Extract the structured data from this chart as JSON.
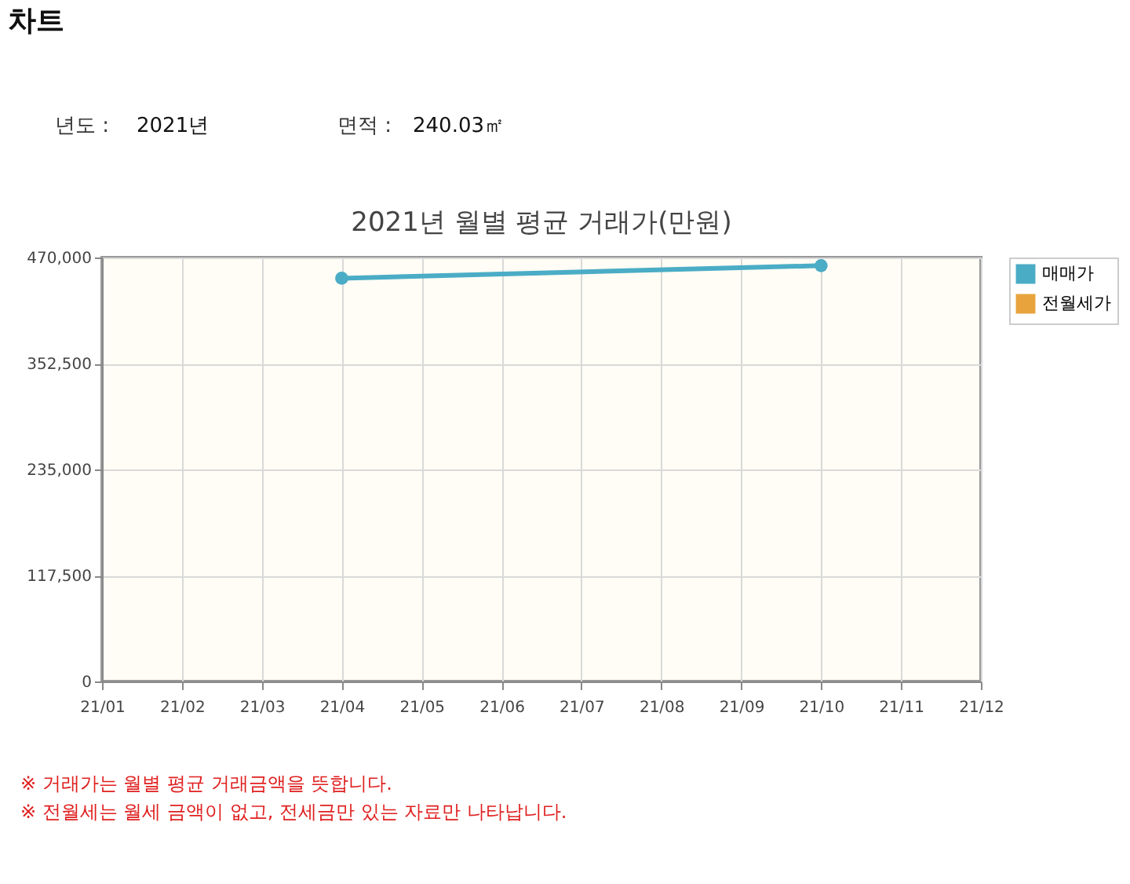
{
  "chart_data": {
    "type": "line",
    "title": "2021년 월별 평균 거래가(만원)",
    "categories": [
      "21/01",
      "21/02",
      "21/03",
      "21/04",
      "21/05",
      "21/06",
      "21/07",
      "21/08",
      "21/09",
      "21/10",
      "21/11",
      "21/12"
    ],
    "series": [
      {
        "name": "매매가",
        "color": "#4bacc6",
        "x": [
          "21/04",
          "21/10"
        ],
        "values": [
          447000,
          461000
        ]
      },
      {
        "name": "전월세가",
        "color": "#e8a33d",
        "values": [
          null,
          null,
          null,
          null,
          null,
          null,
          null,
          null,
          null,
          null,
          null,
          null
        ]
      }
    ],
    "ylim": [
      0,
      470000
    ],
    "yticks": [
      0,
      {
        "value": 117500,
        "label": "117,500"
      },
      {
        "value": 235000,
        "label": "235,000"
      },
      {
        "value": 352500,
        "label": "352,500"
      },
      {
        "value": 470000,
        "label": "470,000"
      }
    ],
    "grid": true,
    "legend": "right",
    "marker": "circle",
    "line_style": "solid",
    "annotations": [
      "차트",
      "년도 :",
      "2021년",
      "면적 :",
      "240.03㎡",
      "※ 거래가는 월별 평균 거래금액을 뜻합니다.",
      "※ 전월세는 월세 금액이 없고, 전세금만 있는 자료만 나타납니다."
    ]
  }
}
